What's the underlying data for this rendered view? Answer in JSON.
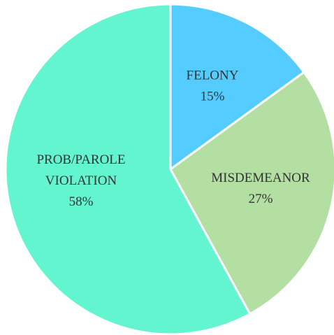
{
  "chart_data": {
    "type": "pie",
    "categories": [
      "FELONY",
      "MISDEMEANOR",
      "PROB/PAROLE VIOLATION"
    ],
    "values": [
      15,
      27,
      58
    ],
    "value_labels": [
      "15%",
      "27%",
      "58%"
    ],
    "colors": [
      "#55ccff",
      "#b3dfa3",
      "#62f5cf"
    ]
  }
}
